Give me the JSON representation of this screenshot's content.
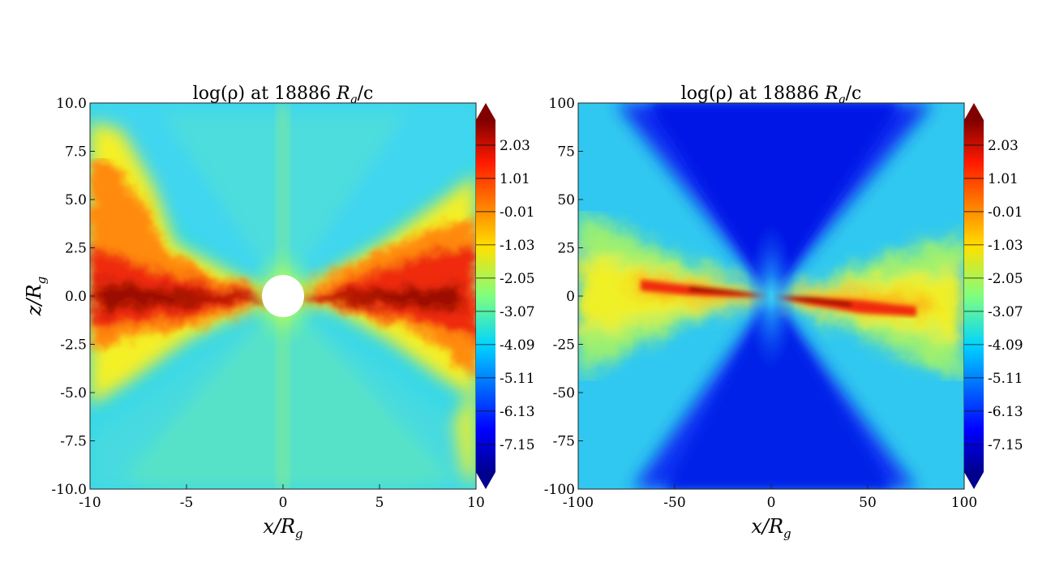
{
  "chart_data": [
    {
      "type": "heatmap",
      "title_prefix": "log(ρ) at 18886 ",
      "title_unit": "R",
      "title_sub": "g",
      "title_suffix": "/c",
      "xlabel_main": "x/R",
      "xlabel_sub": "g",
      "ylabel_main": "z/R",
      "ylabel_sub": "g",
      "xlim": [
        -10,
        10
      ],
      "ylim": [
        -10,
        10
      ],
      "xticks": [
        "-10",
        "-5",
        "0",
        "5",
        "10"
      ],
      "xtick_values": [
        -10,
        -5,
        0,
        5,
        10
      ],
      "yticks": [
        "10.0",
        "7.5",
        "5.0",
        "2.5",
        "0.0",
        "-2.5",
        "-5.0",
        "-7.5",
        "-10.0"
      ],
      "ytick_values": [
        10,
        7.5,
        5,
        2.5,
        0,
        -2.5,
        -5,
        -7.5,
        -10
      ],
      "colorbar_ticks": [
        "2.03",
        "1.01",
        "-0.01",
        "-1.03",
        "-2.05",
        "-3.07",
        "-4.09",
        "-5.11",
        "-6.13",
        "-7.15"
      ],
      "colorbar_values": [
        2.03,
        1.01,
        -0.01,
        -1.03,
        -2.05,
        -3.07,
        -4.09,
        -5.11,
        -6.13,
        -7.15
      ],
      "colorbar_range": [
        -8.0,
        2.8
      ],
      "colormap": "jet",
      "features": {
        "central_hole_radius": 1.1,
        "disk_density_peak": 2.0,
        "background_density": -4.3
      }
    },
    {
      "type": "heatmap",
      "title_prefix": "log(ρ) at 18886 ",
      "title_unit": "R",
      "title_sub": "g",
      "title_suffix": "/c",
      "xlabel_main": "x/R",
      "xlabel_sub": "g",
      "ylabel_main": "",
      "ylabel_sub": "",
      "xlim": [
        -100,
        100
      ],
      "ylim": [
        -100,
        100
      ],
      "xticks": [
        "-100",
        "-50",
        "0",
        "50",
        "100"
      ],
      "xtick_values": [
        -100,
        -50,
        0,
        50,
        100
      ],
      "yticks": [
        "100",
        "75",
        "50",
        "25",
        "0",
        "-25",
        "-50",
        "-75",
        "-100"
      ],
      "ytick_values": [
        100,
        75,
        50,
        25,
        0,
        -25,
        -50,
        -75,
        -100
      ],
      "colorbar_ticks": [
        "2.03",
        "1.01",
        "-0.01",
        "-1.03",
        "-2.05",
        "-3.07",
        "-4.09",
        "-5.11",
        "-6.13",
        "-7.15"
      ],
      "colorbar_values": [
        2.03,
        1.01,
        -0.01,
        -1.03,
        -2.05,
        -3.07,
        -4.09,
        -5.11,
        -6.13,
        -7.15
      ],
      "colorbar_range": [
        -8.0,
        2.8
      ],
      "colormap": "jet",
      "features": {
        "disk_density_peak": 1.6,
        "funnel_density": -6.9
      }
    }
  ]
}
